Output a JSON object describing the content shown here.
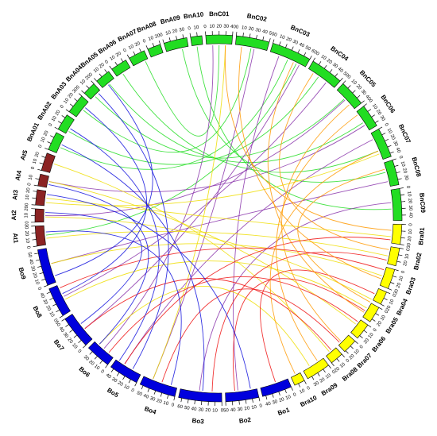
{
  "chart_data": {
    "type": "circos",
    "chromosomes": [
      {
        "name": "BnC01",
        "length": 40,
        "color": "#22dd22",
        "ticks": [
          0,
          10,
          20,
          30,
          40
        ]
      },
      {
        "name": "BnC02",
        "length": 50,
        "color": "#22dd22",
        "ticks": [
          0,
          10,
          20,
          30,
          40,
          50
        ]
      },
      {
        "name": "BnC03",
        "length": 60,
        "color": "#22dd22",
        "ticks": [
          0,
          10,
          20,
          30,
          40,
          50,
          60
        ]
      },
      {
        "name": "BnC04",
        "length": 50,
        "color": "#22dd22",
        "ticks": [
          0,
          10,
          20,
          30,
          40,
          50
        ]
      },
      {
        "name": "BnC05",
        "length": 40,
        "color": "#22dd22",
        "ticks": [
          0,
          10,
          20,
          30,
          40
        ]
      },
      {
        "name": "BnC06",
        "length": 35,
        "color": "#22dd22",
        "ticks": [
          0,
          10,
          20,
          30
        ]
      },
      {
        "name": "BnC07",
        "length": 45,
        "color": "#22dd22",
        "ticks": [
          0,
          10,
          20,
          30,
          40
        ]
      },
      {
        "name": "BnC08",
        "length": 38,
        "color": "#22dd22",
        "ticks": [
          0,
          10,
          20,
          30
        ]
      },
      {
        "name": "BnC09",
        "length": 48,
        "color": "#22dd22",
        "ticks": [
          0,
          10,
          20,
          30,
          40
        ]
      },
      {
        "name": "Bra01",
        "length": 30,
        "color": "#ffff00",
        "ticks": [
          0,
          10,
          20,
          30
        ]
      },
      {
        "name": "Bra02",
        "length": 27,
        "color": "#ffff00",
        "ticks": [
          0,
          10,
          20
        ]
      },
      {
        "name": "Bra03",
        "length": 30,
        "color": "#ffff00",
        "ticks": [
          0,
          10,
          20,
          30
        ]
      },
      {
        "name": "Bra04",
        "length": 20,
        "color": "#ffff00",
        "ticks": [
          0,
          10,
          20
        ]
      },
      {
        "name": "Bra05",
        "length": 25,
        "color": "#ffff00",
        "ticks": [
          0,
          10,
          20
        ]
      },
      {
        "name": "Bra06",
        "length": 25,
        "color": "#ffff00",
        "ticks": [
          0,
          10,
          20
        ]
      },
      {
        "name": "Bra07",
        "length": 22,
        "color": "#ffff00",
        "ticks": [
          0,
          10,
          20
        ]
      },
      {
        "name": "Bra08",
        "length": 20,
        "color": "#ffff00",
        "ticks": [
          0,
          10,
          20
        ]
      },
      {
        "name": "Bra09",
        "length": 37,
        "color": "#ffff00",
        "ticks": [
          0,
          10,
          20,
          30
        ]
      },
      {
        "name": "Bra10",
        "length": 16,
        "color": "#ffff00",
        "ticks": [
          0,
          10
        ]
      },
      {
        "name": "Bo1",
        "length": 45,
        "color": "#0000dd",
        "ticks": [
          0,
          10,
          20,
          30,
          40
        ]
      },
      {
        "name": "Bo2",
        "length": 50,
        "color": "#0000dd",
        "ticks": [
          0,
          10,
          20,
          30,
          40,
          50
        ]
      },
      {
        "name": "Bo3",
        "length": 65,
        "color": "#0000dd",
        "ticks": [
          0,
          10,
          20,
          30,
          40,
          50,
          60
        ]
      },
      {
        "name": "Bo4",
        "length": 55,
        "color": "#0000dd",
        "ticks": [
          0,
          10,
          20,
          30,
          40,
          50
        ]
      },
      {
        "name": "Bo5",
        "length": 45,
        "color": "#0000dd",
        "ticks": [
          0,
          10,
          20,
          30,
          40
        ]
      },
      {
        "name": "Bo6",
        "length": 38,
        "color": "#0000dd",
        "ticks": [
          0,
          10,
          20,
          30
        ]
      },
      {
        "name": "Bo7",
        "length": 50,
        "color": "#0000dd",
        "ticks": [
          0,
          10,
          20,
          30,
          40,
          50
        ]
      },
      {
        "name": "Bo8",
        "length": 45,
        "color": "#0000dd",
        "ticks": [
          0,
          10,
          20,
          30,
          40
        ]
      },
      {
        "name": "Bo9",
        "length": 55,
        "color": "#0000dd",
        "ticks": [
          0,
          10,
          20,
          30,
          40,
          50
        ]
      },
      {
        "name": "At1",
        "length": 30,
        "color": "#8b2323",
        "ticks": [
          0,
          10,
          20,
          30
        ]
      },
      {
        "name": "At2",
        "length": 20,
        "color": "#8b2323",
        "ticks": [
          0,
          10,
          20
        ]
      },
      {
        "name": "At3",
        "length": 23,
        "color": "#8b2323",
        "ticks": [
          0,
          10,
          20
        ]
      },
      {
        "name": "At4",
        "length": 18,
        "color": "#8b2323",
        "ticks": [
          0,
          10
        ]
      },
      {
        "name": "At5",
        "length": 27,
        "color": "#8b2323",
        "ticks": [
          0,
          10,
          20
        ]
      },
      {
        "name": "BnA01",
        "length": 28,
        "color": "#22dd22",
        "ticks": [
          0,
          10,
          20
        ]
      },
      {
        "name": "BnA02",
        "length": 25,
        "color": "#22dd22",
        "ticks": [
          0,
          10,
          20
        ]
      },
      {
        "name": "BnA03",
        "length": 30,
        "color": "#22dd22",
        "ticks": [
          0,
          10,
          20,
          30
        ]
      },
      {
        "name": "BnA04",
        "length": 20,
        "color": "#22dd22",
        "ticks": [
          0,
          10,
          20
        ]
      },
      {
        "name": "BnA05",
        "length": 23,
        "color": "#22dd22",
        "ticks": [
          0,
          10,
          20
        ]
      },
      {
        "name": "BnA06",
        "length": 25,
        "color": "#22dd22",
        "ticks": [
          0,
          10,
          20
        ]
      },
      {
        "name": "BnA07",
        "length": 25,
        "color": "#22dd22",
        "ticks": [
          0,
          10,
          20
        ]
      },
      {
        "name": "BnA08",
        "length": 20,
        "color": "#22dd22",
        "ticks": [
          0,
          10,
          20
        ]
      },
      {
        "name": "BnA09",
        "length": 35,
        "color": "#22dd22",
        "ticks": [
          0,
          10,
          20,
          30
        ]
      },
      {
        "name": "BnA10",
        "length": 17,
        "color": "#22dd22",
        "ticks": [
          0,
          10
        ]
      }
    ],
    "links": [
      {
        "color": "#22dd22",
        "pairs": [
          [
            33,
            10,
            2,
            30
          ],
          [
            34,
            5,
            3,
            20
          ],
          [
            35,
            15,
            1,
            25
          ],
          [
            36,
            8,
            4,
            18
          ],
          [
            37,
            12,
            5,
            20
          ],
          [
            38,
            10,
            6,
            30
          ],
          [
            39,
            20,
            0,
            20
          ],
          [
            41,
            25,
            7,
            15
          ],
          [
            42,
            8,
            8,
            30
          ],
          [
            28,
            15,
            2,
            45
          ]
        ]
      },
      {
        "color": "#8833aa",
        "pairs": [
          [
            0,
            10,
            24,
            20
          ],
          [
            1,
            30,
            22,
            40
          ],
          [
            2,
            15,
            20,
            30
          ],
          [
            3,
            35,
            26,
            25
          ],
          [
            4,
            20,
            29,
            10
          ],
          [
            5,
            25,
            31,
            10
          ],
          [
            6,
            10,
            23,
            30
          ],
          [
            7,
            30,
            27,
            30
          ],
          [
            8,
            20,
            21,
            35
          ],
          [
            2,
            50,
            25,
            20
          ]
        ]
      },
      {
        "color": "#eedd00",
        "pairs": [
          [
            28,
            10,
            10,
            15
          ],
          [
            29,
            8,
            12,
            20
          ],
          [
            30,
            12,
            9,
            20
          ],
          [
            31,
            10,
            14,
            10
          ],
          [
            32,
            15,
            16,
            12
          ],
          [
            27,
            30,
            11,
            15
          ],
          [
            26,
            20,
            13,
            10
          ],
          [
            24,
            30,
            17,
            25
          ],
          [
            22,
            40,
            0,
            30
          ],
          [
            30,
            5,
            6,
            35
          ]
        ]
      },
      {
        "color": "#ee1111",
        "pairs": [
          [
            19,
            20,
            12,
            10
          ],
          [
            20,
            35,
            13,
            15
          ],
          [
            21,
            15,
            10,
            22
          ],
          [
            22,
            25,
            15,
            18
          ],
          [
            23,
            30,
            9,
            25
          ],
          [
            24,
            10,
            14,
            5
          ],
          [
            25,
            20,
            16,
            8
          ],
          [
            26,
            40,
            11,
            5
          ]
        ]
      },
      {
        "color": "#1111dd",
        "pairs": [
          [
            20,
            10,
            30,
            18
          ],
          [
            21,
            30,
            33,
            15
          ],
          [
            22,
            10,
            28,
            20
          ],
          [
            23,
            40,
            34,
            10
          ],
          [
            24,
            30,
            31,
            5
          ],
          [
            25,
            30,
            29,
            15
          ],
          [
            26,
            30,
            35,
            20
          ],
          [
            27,
            10,
            37,
            10
          ],
          [
            23,
            15,
            36,
            15
          ]
        ]
      },
      {
        "color": "#ff9900",
        "pairs": [
          [
            0,
            30,
            9,
            10
          ],
          [
            1,
            10,
            11,
            20
          ],
          [
            2,
            40,
            13,
            18
          ],
          [
            3,
            10,
            10,
            5
          ],
          [
            4,
            30,
            15,
            15
          ],
          [
            5,
            5,
            17,
            10
          ],
          [
            6,
            30,
            18,
            8
          ],
          [
            7,
            10,
            12,
            25
          ]
        ]
      }
    ]
  }
}
